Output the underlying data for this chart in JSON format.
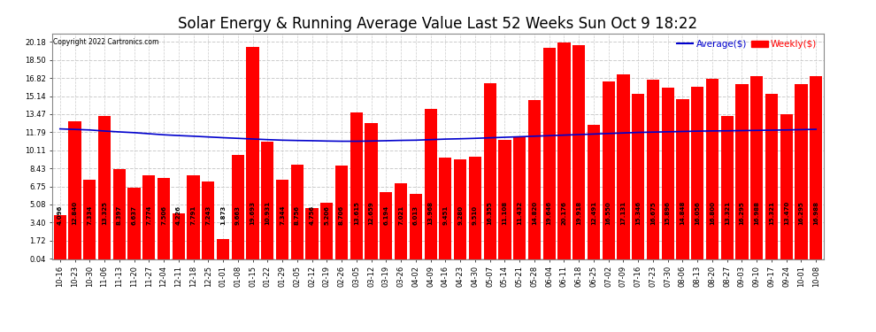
{
  "title": "Solar Energy & Running Average Value Last 52 Weeks Sun Oct 9 18:22",
  "copyright": "Copyright 2022 Cartronics.com",
  "bar_color": "#FF0000",
  "avg_line_color": "#0000CD",
  "categories": [
    "10-16",
    "10-23",
    "10-30",
    "11-06",
    "11-13",
    "11-20",
    "11-27",
    "12-04",
    "12-11",
    "12-18",
    "12-25",
    "01-01",
    "01-08",
    "01-15",
    "01-22",
    "01-29",
    "02-05",
    "02-12",
    "02-19",
    "02-26",
    "03-05",
    "03-12",
    "03-19",
    "03-26",
    "04-02",
    "04-09",
    "04-16",
    "04-23",
    "04-30",
    "05-07",
    "05-14",
    "05-21",
    "05-28",
    "06-04",
    "06-11",
    "06-18",
    "06-25",
    "07-02",
    "07-09",
    "07-16",
    "07-23",
    "07-30",
    "08-06",
    "08-13",
    "08-20",
    "08-27",
    "09-03",
    "09-10",
    "09-17",
    "09-24",
    "10-01",
    "10-08"
  ],
  "weekly_values": [
    4.096,
    12.84,
    7.334,
    13.325,
    8.397,
    6.637,
    7.774,
    7.506,
    4.226,
    7.791,
    7.243,
    1.873,
    9.663,
    19.693,
    10.931,
    7.344,
    8.756,
    4.756,
    5.206,
    8.706,
    13.615,
    12.659,
    6.194,
    7.021,
    6.013,
    13.968,
    9.451,
    9.28,
    9.51,
    16.355,
    11.108,
    11.432,
    14.82,
    19.646,
    20.176,
    19.918,
    12.491,
    16.55,
    17.131,
    15.346,
    16.675,
    15.896,
    14.848,
    16.056,
    16.8,
    13.321,
    16.295,
    16.988,
    15.321,
    13.47,
    16.295,
    16.988
  ],
  "avg_values": [
    12.1,
    12.05,
    12.0,
    11.9,
    11.82,
    11.75,
    11.65,
    11.55,
    11.48,
    11.42,
    11.35,
    11.28,
    11.22,
    11.16,
    11.1,
    11.05,
    11.02,
    11.0,
    10.97,
    10.95,
    10.95,
    10.97,
    11.0,
    11.03,
    11.05,
    11.1,
    11.15,
    11.18,
    11.22,
    11.27,
    11.32,
    11.37,
    11.42,
    11.47,
    11.52,
    11.57,
    11.62,
    11.67,
    11.72,
    11.77,
    11.8,
    11.83,
    11.86,
    11.89,
    11.91,
    11.92,
    11.94,
    11.96,
    11.98,
    12.0,
    12.03,
    12.06
  ],
  "yticks": [
    0.04,
    1.72,
    3.4,
    5.08,
    6.75,
    8.43,
    10.11,
    11.79,
    13.47,
    15.14,
    16.82,
    18.5,
    20.18
  ],
  "ylim": [
    0.0,
    21.0
  ],
  "legend_avg_label": "Average($)",
  "legend_weekly_label": "Weekly($)",
  "background_color": "#FFFFFF",
  "grid_color": "#CCCCCC",
  "title_fontsize": 12,
  "tick_fontsize": 6.0,
  "label_fontsize": 5.0
}
